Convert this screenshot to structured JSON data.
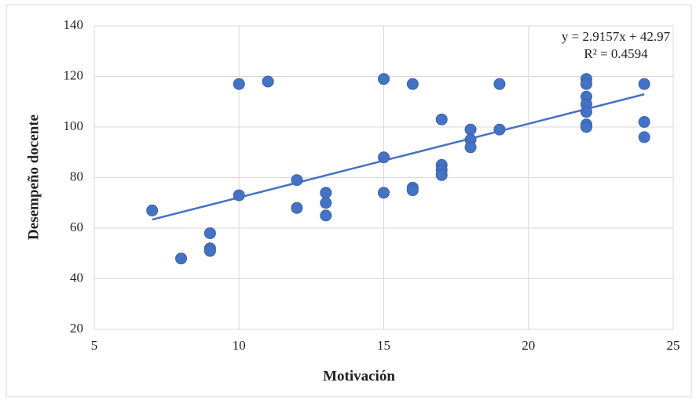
{
  "chart_data": {
    "type": "scatter",
    "x_label": "Motivación",
    "y_label": "Desempeño docente",
    "x": [
      7,
      8,
      9,
      9,
      9,
      10,
      10,
      11,
      12,
      12,
      13,
      13,
      13,
      15,
      15,
      15,
      16,
      16,
      16,
      17,
      17,
      17,
      17,
      18,
      18,
      18,
      19,
      19,
      22,
      22,
      22,
      22,
      22,
      22,
      22,
      24,
      24,
      24
    ],
    "values": [
      67,
      48,
      58,
      52,
      51,
      117,
      73,
      118,
      79,
      68,
      74,
      70,
      65,
      119,
      88,
      74,
      117,
      76,
      75,
      103,
      85,
      83,
      81,
      99,
      95,
      92,
      117,
      99,
      119,
      117,
      112,
      109,
      106,
      101,
      100,
      117,
      102,
      96
    ],
    "color": "#4472c4",
    "xlim": [
      5,
      25
    ],
    "xticks": [
      5,
      10,
      15,
      20,
      25
    ],
    "ylim": [
      20,
      140
    ],
    "yticks": [
      20,
      40,
      60,
      80,
      100,
      120,
      140
    ],
    "grid": true,
    "trendline": {
      "slope": 2.9157,
      "intercept": 42.97,
      "color": "#4472c4",
      "equation": "y = 2.9157x + 42.97",
      "r2": "R² = 0.4594"
    }
  }
}
